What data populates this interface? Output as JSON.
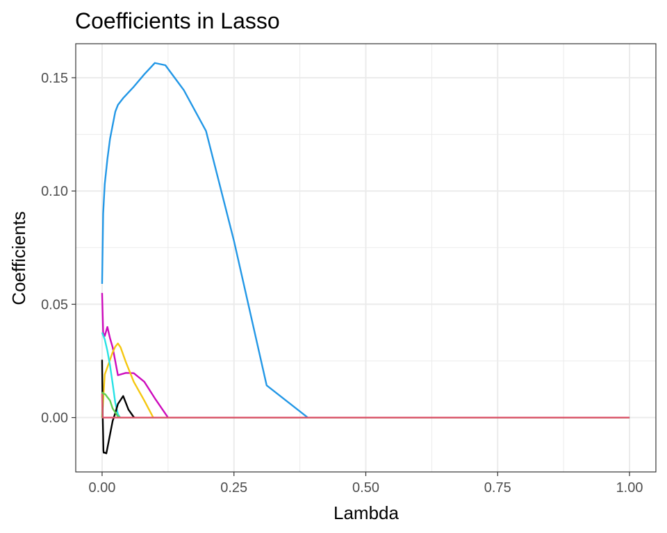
{
  "chart_data": {
    "type": "line",
    "title": "Coefficients in Lasso",
    "xlabel": "Lambda",
    "ylabel": "Coefficients",
    "xlim": [
      -0.05,
      1.05
    ],
    "ylim": [
      -0.024,
      0.165
    ],
    "x_ticks": [
      0.0,
      0.25,
      0.5,
      0.75,
      1.0
    ],
    "x_tick_labels": [
      "0.00",
      "0.25",
      "0.50",
      "0.75",
      "1.00"
    ],
    "y_ticks": [
      0.0,
      0.05,
      0.1,
      0.15
    ],
    "y_tick_labels": [
      "0.00",
      "0.05",
      "0.10",
      "0.15"
    ],
    "x_minor_ticks": [
      0.125,
      0.375,
      0.625,
      0.875
    ],
    "y_minor_ticks": [
      -0.025,
      0.025,
      0.075,
      0.125
    ],
    "grid": true,
    "legend": "none",
    "series": [
      {
        "color": "#2297e6",
        "x": [
          0.0,
          0.002,
          0.005,
          0.01,
          0.015,
          0.02,
          0.025,
          0.03,
          0.04,
          0.06,
          0.08,
          0.1,
          0.12,
          0.155,
          0.197,
          0.25,
          0.312,
          0.39,
          1.0
        ],
        "y": [
          0.059,
          0.09,
          0.103,
          0.114,
          0.123,
          0.129,
          0.135,
          0.138,
          0.141,
          0.146,
          0.1515,
          0.1565,
          0.1555,
          0.1445,
          0.1265,
          0.078,
          0.0142,
          0.0,
          0.0
        ]
      },
      {
        "color": "#cd0bbc",
        "x": [
          0.0,
          0.002,
          0.005,
          0.01,
          0.015,
          0.02,
          0.03,
          0.045,
          0.06,
          0.08,
          0.1,
          0.125,
          1.0
        ],
        "y": [
          0.055,
          0.0375,
          0.036,
          0.04,
          0.035,
          0.031,
          0.0187,
          0.0197,
          0.0196,
          0.0158,
          0.0085,
          0.0,
          0.0
        ]
      },
      {
        "color": "#f5c710",
        "x": [
          0.0,
          0.005,
          0.01,
          0.015,
          0.02,
          0.025,
          0.03,
          0.035,
          0.045,
          0.06,
          0.08,
          0.097,
          1.0
        ],
        "y": [
          0.0,
          0.019,
          0.0222,
          0.0255,
          0.0288,
          0.0313,
          0.0327,
          0.031,
          0.0245,
          0.0158,
          0.0075,
          0.0,
          0.0
        ]
      },
      {
        "color": "#28e2e5",
        "x": [
          0.0,
          0.005,
          0.01,
          0.015,
          0.02,
          0.025,
          0.03,
          0.034,
          1.0
        ],
        "y": [
          0.0375,
          0.0345,
          0.0295,
          0.023,
          0.015,
          0.0065,
          0.0015,
          0.0,
          0.0
        ]
      },
      {
        "color": "#000000",
        "x": [
          0.0,
          0.001,
          0.002,
          0.0025,
          0.003,
          0.005,
          0.008,
          0.01,
          0.015,
          0.02,
          0.025,
          0.03,
          0.04,
          0.05,
          0.06,
          0.062,
          1.0
        ],
        "y": [
          0.0255,
          0.002,
          -0.008,
          -0.0145,
          -0.0155,
          -0.0155,
          -0.0158,
          -0.0135,
          -0.0075,
          -0.0015,
          0.002,
          0.006,
          0.0095,
          0.0035,
          0.0002,
          0.0,
          0.0
        ]
      },
      {
        "color": "#61d04f",
        "x": [
          0.0,
          0.001,
          0.003,
          0.006,
          0.01,
          0.015,
          0.02,
          0.03,
          0.035,
          1.0
        ],
        "y": [
          0.0,
          0.011,
          0.0105,
          0.0103,
          0.009,
          0.0075,
          0.004,
          0.0005,
          0.0,
          0.0
        ]
      },
      {
        "color": "#df536b",
        "x": [
          0.0,
          0.0005,
          0.001,
          1.0
        ],
        "y": [
          0.0105,
          0.0045,
          0.0,
          0.0
        ]
      }
    ]
  }
}
